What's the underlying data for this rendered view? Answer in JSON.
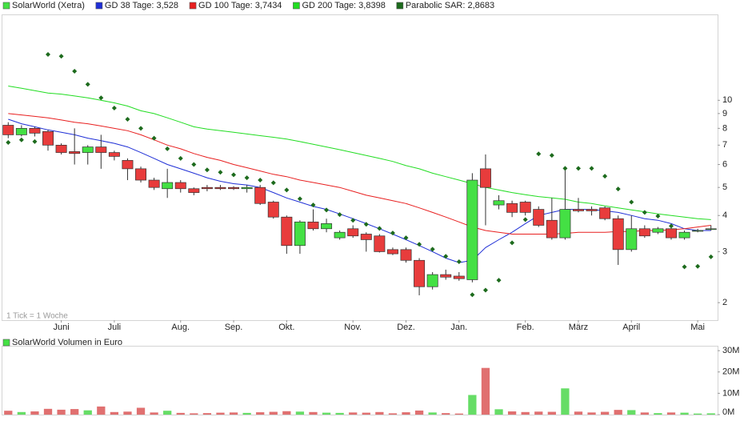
{
  "chart_data": [
    {
      "type": "candlestick",
      "name": "SolarWorld (Xetra)",
      "note": "1 Tick = 1 Woche",
      "categories": [
        null,
        null,
        null,
        null,
        "Juni",
        null,
        null,
        null,
        "Juli",
        null,
        null,
        null,
        null,
        "Aug.",
        null,
        null,
        null,
        "Sep.",
        null,
        null,
        null,
        "Okt.",
        null,
        null,
        null,
        null,
        "Nov.",
        null,
        null,
        null,
        "Dez.",
        null,
        null,
        null,
        "Jan.",
        null,
        null,
        null,
        null,
        "Feb.",
        null,
        null,
        null,
        "März",
        null,
        null,
        null,
        "April",
        null,
        null,
        null,
        null,
        "Mai",
        null
      ],
      "open": [
        8.2,
        7.6,
        8.0,
        7.8,
        7.0,
        6.65,
        6.6,
        6.9,
        6.6,
        6.2,
        5.8,
        5.3,
        4.95,
        5.2,
        4.95,
        5.0,
        5.0,
        5.0,
        4.95,
        5.0,
        4.45,
        3.95,
        3.15,
        3.8,
        3.6,
        3.35,
        3.6,
        3.45,
        3.4,
        3.05,
        3.05,
        2.8,
        2.27,
        2.5,
        2.47,
        2.4,
        5.8,
        4.35,
        4.4,
        4.45,
        4.2,
        3.85,
        3.35,
        4.2,
        4.2,
        4.25,
        3.9,
        3.05,
        3.6,
        3.5,
        3.6,
        3.35,
        3.55,
        3.6
      ],
      "high": [
        8.4,
        8.2,
        8.1,
        7.9,
        7.1,
        8.0,
        7.0,
        7.6,
        6.7,
        6.3,
        5.9,
        5.4,
        5.8,
        5.3,
        5.0,
        5.1,
        5.1,
        5.05,
        5.1,
        5.1,
        4.5,
        4.0,
        3.85,
        4.2,
        3.9,
        3.55,
        3.7,
        3.5,
        3.45,
        3.1,
        3.1,
        2.85,
        2.55,
        2.6,
        2.55,
        5.6,
        6.5,
        4.7,
        4.5,
        4.5,
        4.3,
        4.6,
        5.9,
        4.6,
        4.3,
        4.3,
        4.0,
        4.0,
        3.7,
        3.65,
        3.7,
        3.55,
        3.6,
        3.7
      ],
      "low": [
        7.4,
        7.5,
        7.5,
        6.7,
        6.5,
        6.0,
        6.0,
        5.8,
        6.2,
        5.3,
        5.2,
        4.9,
        4.6,
        4.8,
        4.7,
        4.85,
        4.9,
        4.9,
        4.8,
        4.35,
        3.9,
        2.95,
        2.95,
        3.55,
        3.5,
        3.3,
        3.35,
        3.0,
        2.98,
        2.92,
        2.75,
        2.12,
        2.22,
        2.4,
        2.38,
        2.35,
        3.7,
        4.2,
        3.95,
        4.0,
        3.65,
        3.3,
        3.3,
        4.1,
        4.0,
        3.85,
        2.7,
        3.0,
        3.35,
        3.45,
        3.3,
        3.3,
        3.5,
        3.55
      ],
      "close": [
        7.6,
        8.0,
        7.7,
        7.0,
        6.6,
        6.55,
        6.9,
        6.6,
        6.4,
        5.8,
        5.3,
        5.0,
        5.2,
        4.95,
        4.8,
        4.95,
        4.95,
        4.95,
        5.0,
        4.4,
        3.95,
        3.15,
        3.8,
        3.6,
        3.75,
        3.5,
        3.4,
        3.3,
        3.0,
        2.95,
        2.8,
        2.27,
        2.5,
        2.45,
        2.42,
        5.3,
        5.0,
        4.5,
        4.1,
        4.1,
        3.7,
        3.35,
        4.2,
        4.15,
        4.15,
        3.9,
        3.05,
        3.6,
        3.4,
        3.6,
        3.35,
        3.5,
        3.55,
        3.6
      ],
      "up_color": "#44e044",
      "down_color": "#e83c3c",
      "overlays": [
        {
          "name": "GD 38 Tage: 3,528",
          "color": "#1f2fd6",
          "marker": "line",
          "values": [
            8.6,
            8.3,
            8.1,
            7.9,
            7.75,
            7.6,
            7.4,
            7.25,
            7.1,
            6.9,
            6.6,
            6.3,
            6.0,
            5.8,
            5.6,
            5.4,
            5.25,
            5.15,
            5.1,
            5.0,
            4.8,
            4.6,
            4.45,
            4.3,
            4.2,
            4.05,
            3.9,
            3.75,
            3.6,
            3.45,
            3.3,
            3.15,
            3.0,
            2.85,
            2.75,
            2.8,
            3.1,
            3.3,
            3.5,
            3.75,
            4.0,
            4.1,
            4.2,
            4.2,
            4.2,
            4.15,
            4.1,
            4.0,
            3.9,
            3.85,
            3.75,
            3.6,
            3.55,
            3.55
          ]
        },
        {
          "name": "GD 100 Tage: 3,7434",
          "color": "#e82020",
          "marker": "line",
          "values": [
            9.0,
            8.9,
            8.8,
            8.7,
            8.55,
            8.4,
            8.3,
            8.15,
            8.0,
            7.85,
            7.6,
            7.3,
            7.0,
            6.8,
            6.55,
            6.35,
            6.2,
            6.0,
            5.85,
            5.7,
            5.55,
            5.45,
            5.3,
            5.2,
            5.1,
            5.0,
            4.85,
            4.7,
            4.6,
            4.5,
            4.4,
            4.25,
            4.1,
            3.95,
            3.8,
            3.65,
            3.55,
            3.5,
            3.45,
            3.45,
            3.45,
            3.45,
            3.47,
            3.5,
            3.5,
            3.5,
            3.52,
            3.52,
            3.55,
            3.55,
            3.57,
            3.6,
            3.65,
            3.7
          ]
        },
        {
          "name": "GD 200 Tage: 3,8398",
          "color": "#22dd22",
          "marker": "line",
          "values": [
            11.2,
            11.0,
            10.8,
            10.6,
            10.5,
            10.35,
            10.2,
            10.0,
            9.8,
            9.55,
            9.2,
            9.0,
            8.7,
            8.4,
            8.1,
            7.95,
            7.85,
            7.75,
            7.65,
            7.55,
            7.45,
            7.35,
            7.2,
            7.05,
            6.9,
            6.75,
            6.6,
            6.45,
            6.3,
            6.15,
            5.95,
            5.8,
            5.6,
            5.45,
            5.3,
            5.15,
            5.0,
            4.9,
            4.8,
            4.72,
            4.65,
            4.6,
            4.55,
            4.45,
            4.4,
            4.32,
            4.25,
            4.18,
            4.12,
            4.05,
            4.0,
            3.95,
            3.9,
            3.87
          ]
        },
        {
          "name": "Parabolic SAR: 2,8683",
          "color": "#1d6b1d",
          "marker": "dot",
          "values": [
            7.15,
            7.3,
            7.2,
            14.4,
            14.2,
            12.6,
            11.35,
            10.2,
            9.4,
            8.6,
            8.0,
            7.4,
            6.8,
            6.3,
            6.0,
            5.75,
            5.64,
            5.53,
            5.4,
            5.3,
            5.19,
            4.9,
            4.57,
            4.35,
            4.18,
            4.03,
            3.85,
            3.73,
            3.61,
            3.48,
            3.35,
            3.18,
            3.06,
            2.89,
            2.77,
            2.13,
            2.21,
            2.39,
            3.22,
            3.87,
            6.53,
            6.45,
            5.82,
            5.82,
            5.82,
            5.47,
            4.94,
            4.45,
            4.1,
            3.98,
            3.68,
            2.66,
            2.67,
            2.88
          ]
        }
      ],
      "log_scale": true,
      "ylim": [
        1.74,
        19.8
      ],
      "yticks": [
        2,
        3,
        4,
        5,
        6,
        7,
        8,
        9,
        10
      ]
    },
    {
      "type": "bar",
      "title": "SolarWorld Volumen in Euro",
      "values": [
        1800000,
        1200000,
        1500000,
        2700000,
        2300000,
        2600000,
        2000000,
        3800000,
        1200000,
        1400000,
        3200000,
        1000000,
        1800000,
        800000,
        600000,
        700000,
        900000,
        1000000,
        800000,
        1100000,
        1300000,
        1600000,
        1400000,
        1200000,
        900000,
        800000,
        1000000,
        900000,
        1200000,
        600000,
        1100000,
        1900000,
        1000000,
        700000,
        500000,
        9200000,
        21900000,
        2500000,
        1500000,
        1200000,
        1400000,
        1300000,
        12300000,
        1400000,
        1000000,
        1300000,
        2200000,
        2100000,
        1000000,
        700000,
        1000000,
        900000,
        500000,
        600000
      ],
      "up_color": "#66dd66",
      "down_color": "#e07070",
      "legend_color": "#44e044",
      "ylim": [
        0,
        32300000
      ],
      "yticks": [
        {
          "value": 0,
          "label": "0M"
        },
        {
          "value": 10000000,
          "label": "10M"
        },
        {
          "value": 20000000,
          "label": "20M"
        },
        {
          "value": 30000000,
          "label": "30M"
        }
      ]
    }
  ]
}
